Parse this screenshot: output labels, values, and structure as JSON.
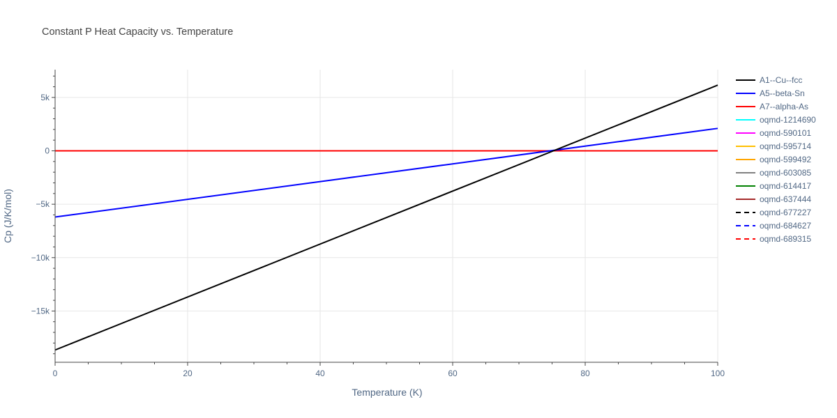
{
  "chart_data": {
    "type": "line",
    "title": "Constant P Heat Capacity vs. Temperature",
    "xlabel": "Temperature (K)",
    "ylabel": "Cp (J/K/mol)",
    "xlim": [
      0,
      100
    ],
    "ylim": [
      -19800,
      7600
    ],
    "x_ticks": [
      0,
      20,
      40,
      60,
      80,
      100
    ],
    "x_tick_labels": [
      "0",
      "20",
      "40",
      "60",
      "80",
      "100"
    ],
    "y_ticks": [
      -15000,
      -10000,
      -5000,
      0,
      5000
    ],
    "y_tick_labels": [
      "−15k",
      "−10k",
      "−5k",
      "0",
      "5k"
    ],
    "grid": true,
    "legend_position": "right",
    "series": [
      {
        "name": "A1--Cu--fcc",
        "color": "#000000",
        "dash": "solid",
        "x": [
          0,
          100
        ],
        "y": [
          -18650,
          6150
        ]
      },
      {
        "name": "A5--beta-Sn",
        "color": "#0000ff",
        "dash": "solid",
        "x": [
          0,
          100
        ],
        "y": [
          -6200,
          2100
        ]
      },
      {
        "name": "A7--alpha-As",
        "color": "#ff0000",
        "dash": "solid",
        "x": [
          0,
          100
        ],
        "y": [
          0,
          0
        ]
      },
      {
        "name": "oqmd-1214690",
        "color": "#00ffff",
        "dash": "solid",
        "x": [
          0,
          100
        ],
        "y": [
          0,
          0
        ]
      },
      {
        "name": "oqmd-590101",
        "color": "#ff00ff",
        "dash": "solid",
        "x": [
          0,
          100
        ],
        "y": [
          0,
          0
        ]
      },
      {
        "name": "oqmd-595714",
        "color": "#ffbf00",
        "dash": "solid",
        "x": [
          0,
          100
        ],
        "y": [
          0,
          0
        ]
      },
      {
        "name": "oqmd-599492",
        "color": "#ffa500",
        "dash": "solid",
        "x": [
          0,
          100
        ],
        "y": [
          0,
          0
        ]
      },
      {
        "name": "oqmd-603085",
        "color": "#808080",
        "dash": "solid",
        "x": [
          0,
          100
        ],
        "y": [
          0,
          0
        ]
      },
      {
        "name": "oqmd-614417",
        "color": "#008000",
        "dash": "solid",
        "x": [
          0,
          100
        ],
        "y": [
          0,
          0
        ]
      },
      {
        "name": "oqmd-637444",
        "color": "#a52a2a",
        "dash": "solid",
        "x": [
          0,
          100
        ],
        "y": [
          0,
          0
        ]
      },
      {
        "name": "oqmd-677227",
        "color": "#000000",
        "dash": "dash",
        "x": [
          0,
          100
        ],
        "y": [
          0,
          0
        ]
      },
      {
        "name": "oqmd-684627",
        "color": "#0000ff",
        "dash": "dash",
        "x": [
          0,
          100
        ],
        "y": [
          0,
          0
        ]
      },
      {
        "name": "oqmd-689315",
        "color": "#ff0000",
        "dash": "dash",
        "x": [
          0,
          100
        ],
        "y": [
          0,
          0
        ]
      }
    ]
  }
}
